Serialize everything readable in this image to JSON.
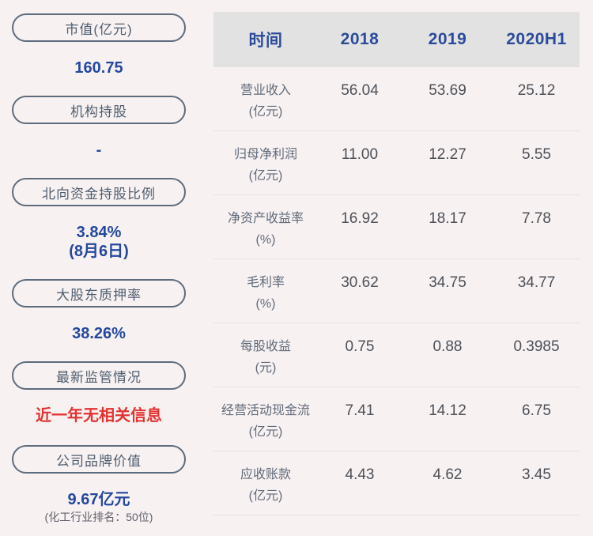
{
  "colors": {
    "page_background": "#f8f1f1",
    "accent_blue": "#24489e",
    "alert_red": "#e33231",
    "pill_border": "#5d6c7d",
    "table_header_bg": "#e3e2e2",
    "table_header_text": "#2a4b9b"
  },
  "sidebar": {
    "items": [
      {
        "label": "市值(亿元)",
        "value": "160.75"
      },
      {
        "label": "机构持股",
        "value": "-"
      },
      {
        "label": "北向资金持股比例",
        "value": "3.84%",
        "value_note": "(8月6日)"
      },
      {
        "label": "大股东质押率",
        "value": "38.26%"
      },
      {
        "label": "最新监管情况",
        "value": "近一年无相关信息"
      },
      {
        "label": "公司品牌价值",
        "value": "9.67亿元",
        "sub_note": "(化工行业排名：50位)"
      }
    ]
  },
  "table": {
    "header": [
      "时间",
      "2018",
      "2019",
      "2020H1"
    ],
    "rows": [
      {
        "label": "营业收入",
        "unit": "(亿元)",
        "values": [
          "56.04",
          "53.69",
          "25.12"
        ]
      },
      {
        "label": "归母净利润",
        "unit": "(亿元)",
        "values": [
          "11.00",
          "12.27",
          "5.55"
        ]
      },
      {
        "label": "净资产收益率",
        "unit": "(%)",
        "values": [
          "16.92",
          "18.17",
          "7.78"
        ]
      },
      {
        "label": "毛利率",
        "unit": "(%)",
        "values": [
          "30.62",
          "34.75",
          "34.77"
        ]
      },
      {
        "label": "每股收益",
        "unit": "(元)",
        "values": [
          "0.75",
          "0.88",
          "0.3985"
        ]
      },
      {
        "label": "经营活动现金流",
        "unit": "(亿元)",
        "values": [
          "7.41",
          "14.12",
          "6.75"
        ]
      },
      {
        "label": "应收账款",
        "unit": "(亿元)",
        "values": [
          "4.43",
          "4.62",
          "3.45"
        ]
      }
    ]
  }
}
